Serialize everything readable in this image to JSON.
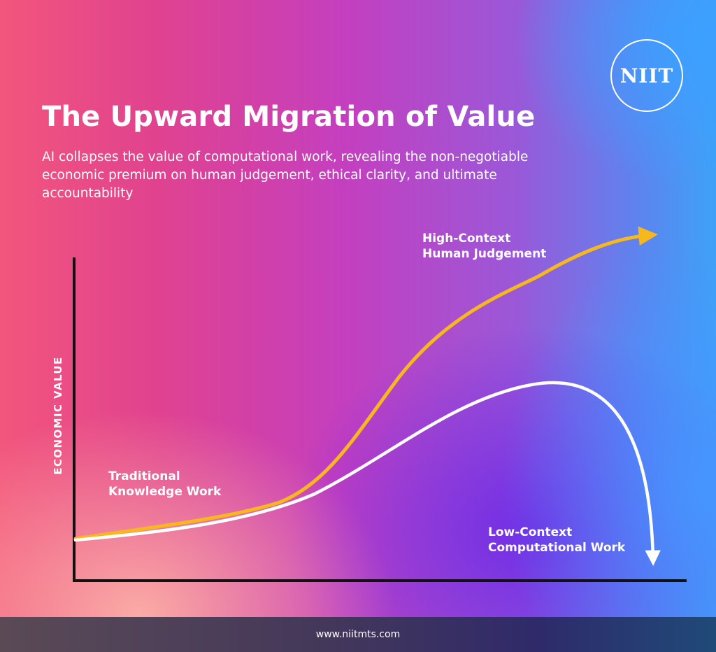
{
  "logo": {
    "text": "NIIT"
  },
  "header": {
    "title": "The Upward Migration of Value",
    "subtitle": "AI collapses the value of computational work, revealing the non-negotiable economic premium on human judgement, ethical clarity, and ultimate accountability"
  },
  "diagram": {
    "y_axis_label": "ECONOMIC VALUE",
    "curves": [
      {
        "id": "high",
        "label_line1": "High-Context",
        "label_line2": "Human Judgement",
        "color": "#f7b81e"
      },
      {
        "id": "low",
        "label_line1": "Low-Context",
        "label_line2": "Computational Work",
        "color": "#ffffff"
      }
    ],
    "start_label_line1": "Traditional",
    "start_label_line2": "Knowledge Work",
    "axis_color": "#111111"
  },
  "footer": {
    "url": "www.niitmts.com"
  }
}
